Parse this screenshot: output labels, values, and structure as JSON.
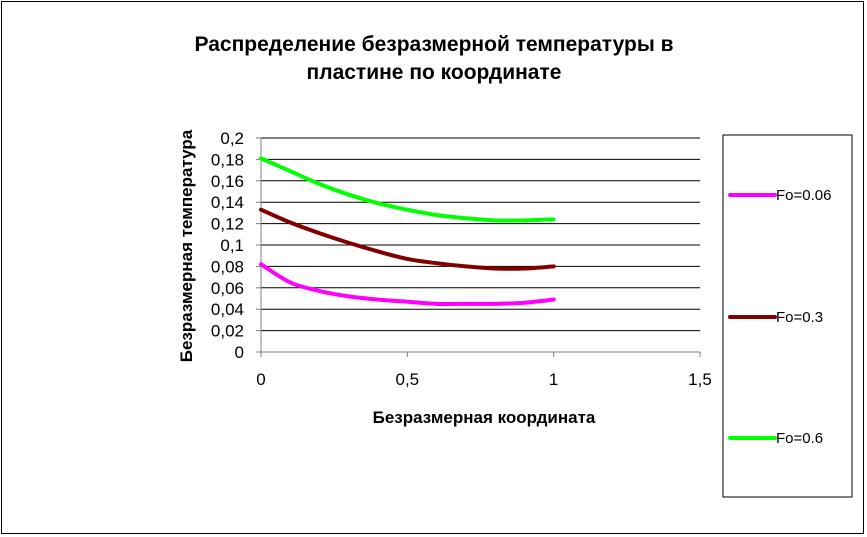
{
  "chart_data": {
    "type": "line",
    "title_lines": [
      "Распределение безразмерной температуры в",
      "пластине по координате"
    ],
    "xlabel": "Безразмерная координата",
    "ylabel": "Безразмерная температура",
    "xlim": [
      0,
      1.5
    ],
    "ylim": [
      0,
      0.2
    ],
    "x_ticks": [
      0,
      0.5,
      1,
      1.5
    ],
    "x_tick_labels": [
      "0",
      "0,5",
      "1",
      "1,5"
    ],
    "y_ticks": [
      0,
      0.02,
      0.04,
      0.06,
      0.08,
      0.1,
      0.12,
      0.14,
      0.16,
      0.18,
      0.2
    ],
    "y_tick_labels": [
      "0",
      "0,02",
      "0,04",
      "0,06",
      "0,08",
      "0,1",
      "0,12",
      "0,14",
      "0,16",
      "0,18",
      "0,2"
    ],
    "grid": "horizontal",
    "legend_position": "right",
    "series": [
      {
        "name": "Fo=0.06",
        "color": "#ff00ff",
        "x": [
          0,
          0.1,
          0.2,
          0.3,
          0.4,
          0.5,
          0.6,
          0.7,
          0.8,
          0.9,
          1.0
        ],
        "y": [
          0.082,
          0.065,
          0.057,
          0.052,
          0.049,
          0.047,
          0.045,
          0.045,
          0.045,
          0.046,
          0.049
        ]
      },
      {
        "name": "Fo=0.3",
        "color": "#800000",
        "x": [
          0,
          0.1,
          0.2,
          0.3,
          0.4,
          0.5,
          0.6,
          0.7,
          0.8,
          0.9,
          1.0
        ],
        "y": [
          0.133,
          0.121,
          0.111,
          0.102,
          0.094,
          0.087,
          0.083,
          0.08,
          0.078,
          0.078,
          0.08
        ]
      },
      {
        "name": "Fo=0.6",
        "color": "#00ff00",
        "x": [
          0,
          0.1,
          0.2,
          0.3,
          0.4,
          0.5,
          0.6,
          0.7,
          0.8,
          0.9,
          1.0
        ],
        "y": [
          0.181,
          0.169,
          0.157,
          0.147,
          0.139,
          0.133,
          0.128,
          0.125,
          0.123,
          0.123,
          0.124
        ]
      }
    ]
  }
}
